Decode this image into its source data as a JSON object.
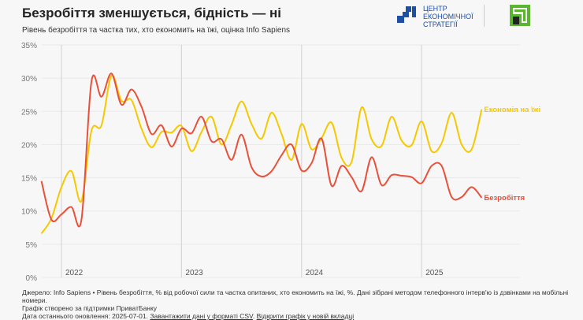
{
  "header": {
    "title": "Безробіття зменшується, бідність — ні",
    "subtitle": "Рівень безробіття та частка тих, хто економить на їжі, оцінка Info Sapiens"
  },
  "logos": {
    "ces": "ЦЕНТР ЕКОНОМІЧНОЇ СТРАТЕГІЇ",
    "ces_lines": [
      "ЦЕНТР",
      "ЕКОНОМІЧНОЇ",
      "СТРАТЕГІЇ"
    ],
    "ces_color": "#1e4fa3",
    "privatbank_color": "#5cb531"
  },
  "chart_data": {
    "type": "line",
    "title": "Безробіття зменшується, бідність — ні",
    "subtitle": "Рівень безробіття та частка тих, хто економить на їжі, оцінка Info Sapiens",
    "ylim": [
      0,
      35
    ],
    "yticks": [
      "0%",
      "5%",
      "10%",
      "15%",
      "20%",
      "25%",
      "30%",
      "35%"
    ],
    "ytick_values": [
      0,
      5,
      10,
      15,
      20,
      25,
      30,
      35
    ],
    "xticks": [
      "2022",
      "2023",
      "2024",
      "2025"
    ],
    "grid": true,
    "legend": "inline labels at line ends (right)",
    "x": [
      "2021-11",
      "2021-12",
      "2022-01",
      "2022-02",
      "2022-03",
      "2022-04",
      "2022-05",
      "2022-06",
      "2022-07",
      "2022-08",
      "2022-09",
      "2022-10",
      "2022-11",
      "2022-12",
      "2023-01",
      "2023-02",
      "2023-03",
      "2023-04",
      "2023-05",
      "2023-06",
      "2023-07",
      "2023-08",
      "2023-09",
      "2023-10",
      "2023-11",
      "2023-12",
      "2024-01",
      "2024-02",
      "2024-03",
      "2024-04",
      "2024-05",
      "2024-06",
      "2024-07",
      "2024-08",
      "2024-09",
      "2024-10",
      "2024-11",
      "2024-12",
      "2025-01",
      "2025-02",
      "2025-03",
      "2025-04",
      "2025-05",
      "2025-06",
      "2025-07"
    ],
    "series": [
      {
        "name": "Економія на їжі",
        "color": "#f5c800",
        "values": [
          6.6,
          8.9,
          13.6,
          16.0,
          11.5,
          22.1,
          22.9,
          30.4,
          26.6,
          26.7,
          22.4,
          19.6,
          21.9,
          21.8,
          22.8,
          19.0,
          21.9,
          24.2,
          20.0,
          23.0,
          26.5,
          23.1,
          20.9,
          24.8,
          21.6,
          17.7,
          23.1,
          19.3,
          21.0,
          23.3,
          18.0,
          17.4,
          25.6,
          20.8,
          19.8,
          24.2,
          20.6,
          19.9,
          23.5,
          19.0,
          20.2,
          24.8,
          20.0,
          19.3,
          25.3
        ]
      },
      {
        "name": "Безробіття",
        "color": "#e8503a",
        "values": [
          14.5,
          8.7,
          9.5,
          10.6,
          8.7,
          29.5,
          27.2,
          30.7,
          26.0,
          28.3,
          25.7,
          21.6,
          22.9,
          19.7,
          22.4,
          21.7,
          24.2,
          20.5,
          20.8,
          17.7,
          21.5,
          16.6,
          15.2,
          16.0,
          18.4,
          20.0,
          16.1,
          17.2,
          20.9,
          13.8,
          16.8,
          15.1,
          13.0,
          18.1,
          13.9,
          15.4,
          15.3,
          15.1,
          14.2,
          16.8,
          16.8,
          12.1,
          12.1,
          13.6,
          12.0
        ]
      }
    ]
  },
  "footer": {
    "source": "Джерело: Info Sapiens • Рівень безробіття, % від робочої сили та частка опитаних, хто економить на їжі, %. Дані зібрані методом телефонного інтерв'ю із дзвінками на мобільні номери.",
    "support": "Графік створено за підтримки ПриватБанку",
    "updated": "Дата останнього оновлення: 2025-07-01.",
    "csv_link": "Завантажити дані у форматі CSV",
    "sep": ".",
    "open_link": "Відкрити графік у новій вкладці"
  }
}
